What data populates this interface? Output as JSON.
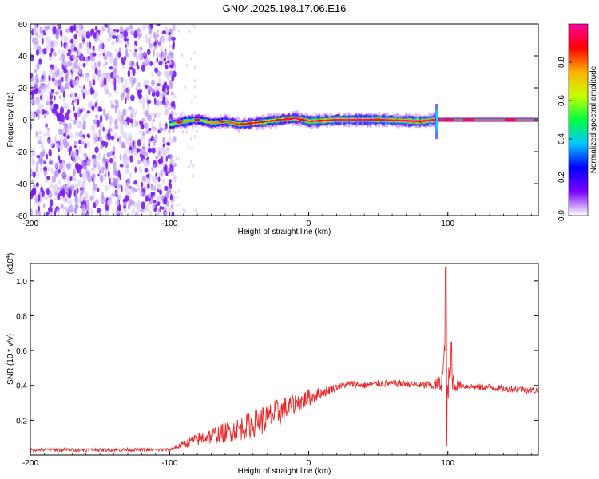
{
  "title": "GN04.2025.198.17.06.E16",
  "chart_data": [
    {
      "type": "heatmap",
      "xlabel": "Height of straight line (km)",
      "ylabel": "Frequency (Hz)",
      "xlim": [
        -200,
        165
      ],
      "ylim": [
        -60,
        60
      ],
      "xticks": [
        -200,
        -100,
        0,
        100
      ],
      "yticks": [
        -60,
        -40,
        -20,
        0,
        20,
        40,
        60
      ],
      "colorbar": {
        "label": "Normalized spectral amplitude",
        "range": [
          0,
          1
        ],
        "ticks": [
          "0.0",
          "0.2",
          "0.4",
          "0.6",
          "0.8"
        ],
        "tick_values": [
          0,
          0.2,
          0.4,
          0.6,
          0.8
        ],
        "colors": [
          "#ffffff",
          "#7a00ff",
          "#0000ff",
          "#00c8ff",
          "#00ff40",
          "#c8ff00",
          "#ffb000",
          "#ff0000",
          "#ff00a0"
        ]
      },
      "noise_region": {
        "x_range": [
          -200,
          -100
        ],
        "color": "#7a1cf0"
      },
      "signal_track": [
        {
          "x": -100,
          "y": -3,
          "amp": 0.35
        },
        {
          "x": -90,
          "y": -1,
          "amp": 0.55
        },
        {
          "x": -80,
          "y": 0,
          "amp": 0.45
        },
        {
          "x": -70,
          "y": -2,
          "amp": 0.5
        },
        {
          "x": -60,
          "y": -1,
          "amp": 0.55
        },
        {
          "x": -50,
          "y": -3,
          "amp": 0.6
        },
        {
          "x": -40,
          "y": -2,
          "amp": 0.65
        },
        {
          "x": -30,
          "y": -1,
          "amp": 0.7
        },
        {
          "x": -20,
          "y": 0,
          "amp": 0.75
        },
        {
          "x": -10,
          "y": 1,
          "amp": 0.8
        },
        {
          "x": 0,
          "y": -1,
          "amp": 0.85
        },
        {
          "x": 20,
          "y": 0,
          "amp": 0.9
        },
        {
          "x": 50,
          "y": 0,
          "amp": 0.92
        },
        {
          "x": 80,
          "y": -1,
          "amp": 0.95
        },
        {
          "x": 90,
          "y": 0,
          "amp": 0.95
        },
        {
          "x": 100,
          "y": 0,
          "amp": 0.97
        },
        {
          "x": 165,
          "y": 0,
          "amp": 0.97
        }
      ]
    },
    {
      "type": "line",
      "xlabel": "Height of straight line (km)",
      "ylabel": "SNR (10 * v/v)",
      "scale_note": "(x10",
      "scale_exp": "4",
      "xlim": [
        -200,
        165
      ],
      "ylim": [
        0,
        1.1
      ],
      "xticks": [
        -200,
        -100,
        0,
        100
      ],
      "yticks": [
        "0.2",
        "0.4",
        "0.6",
        "0.8",
        "1.0"
      ],
      "ytick_values": [
        0.2,
        0.4,
        0.6,
        0.8,
        1.0
      ],
      "series": [
        {
          "color": "#e8282a",
          "x": [
            -200,
            -180,
            -160,
            -140,
            -120,
            -100,
            -90,
            -80,
            -70,
            -60,
            -50,
            -40,
            -30,
            -20,
            -10,
            0,
            10,
            20,
            30,
            40,
            50,
            60,
            70,
            80,
            90,
            95,
            98,
            100,
            102,
            105,
            110,
            120,
            130,
            140,
            150,
            165
          ],
          "y": [
            0.03,
            0.03,
            0.03,
            0.03,
            0.03,
            0.03,
            0.06,
            0.09,
            0.11,
            0.13,
            0.15,
            0.18,
            0.21,
            0.25,
            0.29,
            0.33,
            0.36,
            0.39,
            0.41,
            0.4,
            0.41,
            0.41,
            0.41,
            0.4,
            0.4,
            0.41,
            0.55,
            0.38,
            0.48,
            0.4,
            0.4,
            0.39,
            0.39,
            0.38,
            0.38,
            0.37
          ],
          "noise": [
            0.01,
            0.01,
            0.01,
            0.01,
            0.01,
            0.01,
            0.02,
            0.04,
            0.05,
            0.06,
            0.07,
            0.08,
            0.09,
            0.08,
            0.06,
            0.05,
            0.03,
            0.02,
            0.02,
            0.02,
            0.02,
            0.02,
            0.02,
            0.02,
            0.03,
            0.05,
            0.15,
            0.1,
            0.1,
            0.04,
            0.02,
            0.02,
            0.02,
            0.02,
            0.02,
            0.02
          ]
        }
      ]
    }
  ]
}
